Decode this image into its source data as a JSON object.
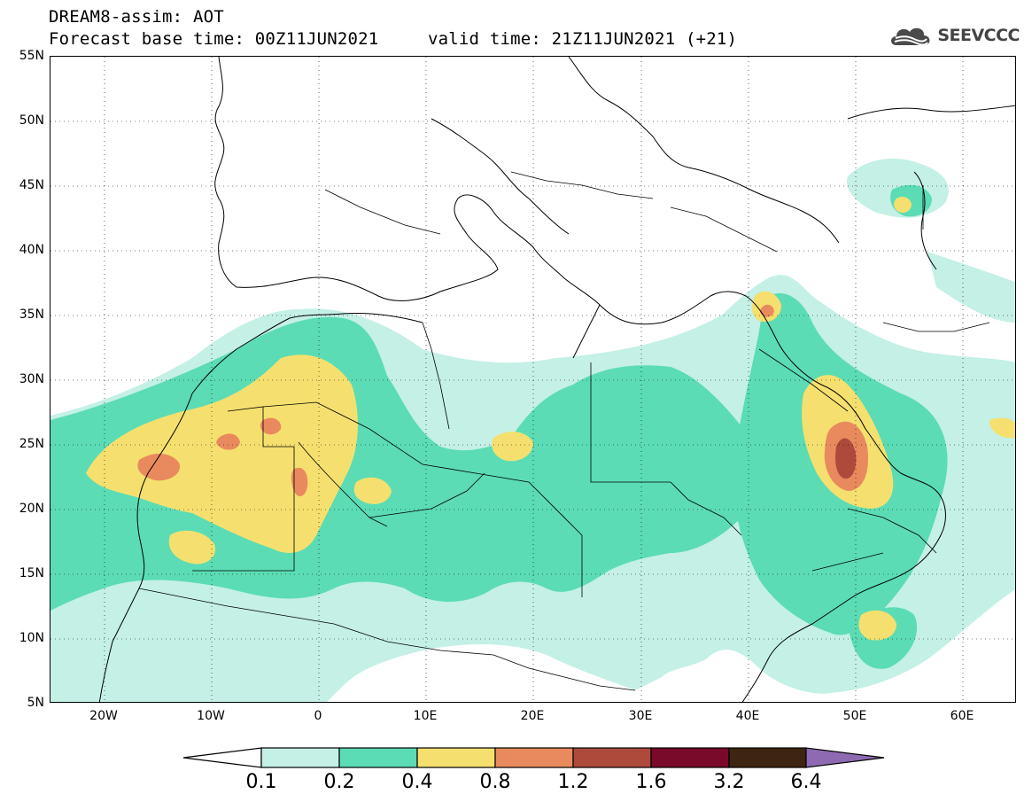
{
  "title": {
    "line1": "DREAM8-assim: AOT",
    "line2": "Forecast base time: 00Z11JUN2021",
    "valid": "valid time: 21Z11JUN2021 (+21)"
  },
  "logo": {
    "text": "SEEVCCC",
    "icon": "cloud-icon"
  },
  "map": {
    "region": "North Africa, Mediterranean and Middle East",
    "lon_range": [
      -25,
      65
    ],
    "lat_range": [
      5,
      55
    ],
    "lat_labels": [
      "55N",
      "50N",
      "45N",
      "40N",
      "35N",
      "30N",
      "25N",
      "20N",
      "15N",
      "10N",
      "5N"
    ],
    "lon_labels": [
      "20W",
      "10W",
      "0",
      "10E",
      "20E",
      "30E",
      "40E",
      "50E",
      "60E"
    ],
    "grid": "dotted"
  },
  "colorbar": {
    "labels": [
      "0.1",
      "0.2",
      "0.4",
      "0.8",
      "1.2",
      "1.6",
      "3.2",
      "6.4"
    ],
    "colors": [
      "#ffffff",
      "#c4f0e6",
      "#5bdcb4",
      "#f5e06f",
      "#e98a5e",
      "#ad4a3c",
      "#7a0a2a",
      "#3e2512",
      "#8e6ab2"
    ]
  }
}
